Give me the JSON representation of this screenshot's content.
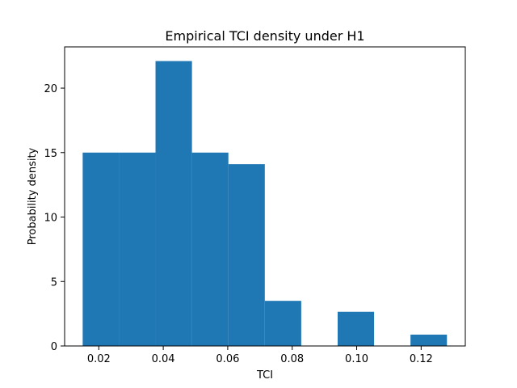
{
  "chart_data": {
    "type": "bar",
    "title": "Empirical TCI density under H1",
    "xlabel": "TCI",
    "ylabel": "Probability density",
    "bin_edges": [
      0.015,
      0.0263,
      0.0376,
      0.0489,
      0.0602,
      0.0715,
      0.0828,
      0.0941,
      0.1054,
      0.1167,
      0.128
    ],
    "values": [
      15.0,
      15.0,
      22.1,
      15.0,
      14.1,
      3.5,
      0.0,
      2.65,
      0.0,
      0.88
    ],
    "xlim": [
      0.0094,
      0.1337
    ],
    "ylim": [
      0,
      23.2
    ],
    "xticks": [
      0.02,
      0.04,
      0.06,
      0.08,
      0.1,
      0.12
    ],
    "xtick_labels": [
      "0.02",
      "0.04",
      "0.06",
      "0.08",
      "0.10",
      "0.12"
    ],
    "yticks": [
      0,
      5,
      10,
      15,
      20
    ],
    "ytick_labels": [
      "0",
      "5",
      "10",
      "15",
      "20"
    ],
    "bar_color": "#1f77b4",
    "grid": false,
    "legend": "none"
  }
}
